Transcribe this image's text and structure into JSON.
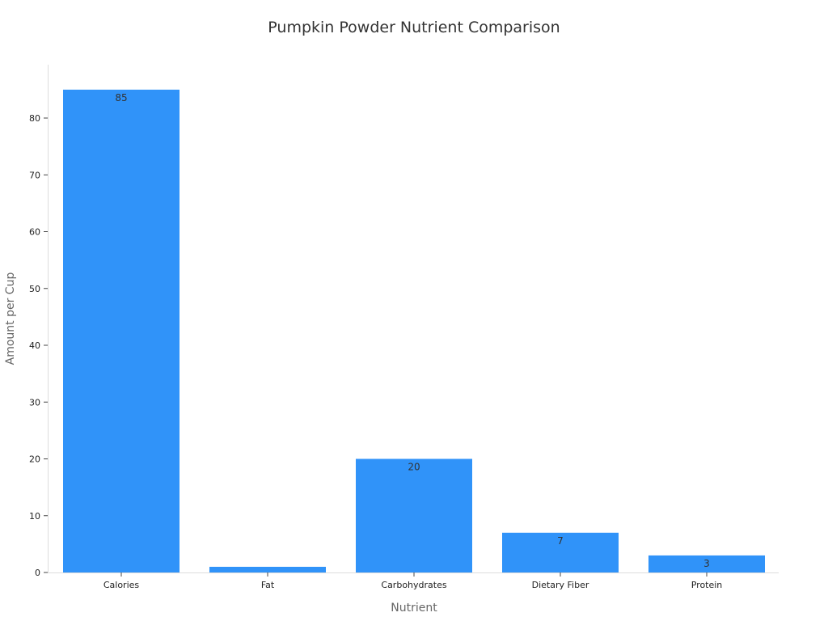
{
  "chart_data": {
    "type": "bar",
    "title": "Pumpkin Powder Nutrient Comparison",
    "xlabel": "Nutrient",
    "ylabel": "Amount per Cup",
    "categories": [
      "Calories",
      "Fat",
      "Carbohydrates",
      "Dietary Fiber",
      "Protein"
    ],
    "values": [
      85,
      1,
      20,
      7,
      3
    ],
    "data_labels": [
      "85",
      "",
      "20",
      "7",
      "3"
    ],
    "yticks": [
      0,
      10,
      20,
      30,
      40,
      50,
      60,
      70,
      80
    ],
    "ylim": [
      0,
      89
    ],
    "grid": false,
    "bar_color": "#3093f9"
  }
}
